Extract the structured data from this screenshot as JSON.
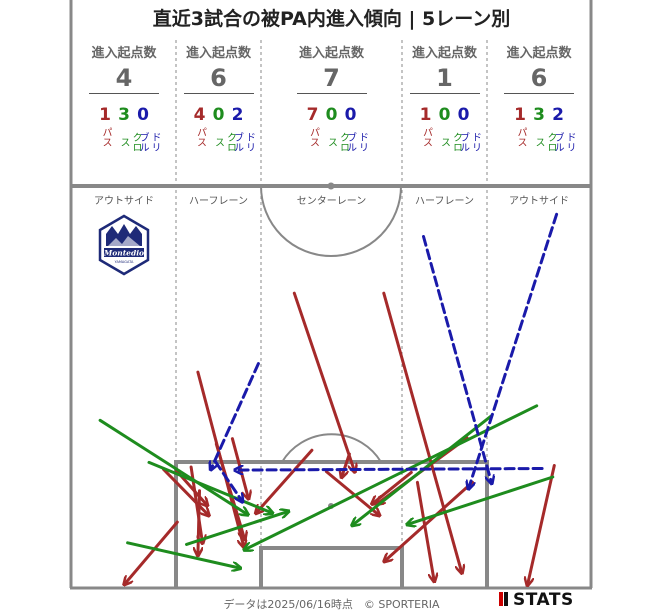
{
  "title": "直近3試合の被PA内進入傾向 | 5レーン別",
  "header_label": "進入起点数",
  "colors": {
    "pass": "#a52a2a",
    "cross": "#1e8c1e",
    "dribble": "#1a1aaa",
    "line": "#888888"
  },
  "lanes": [
    {
      "name": "アウトサイド",
      "total": "4",
      "pass": "1",
      "cross": "3",
      "dribble": "0"
    },
    {
      "name": "ハーフレーン",
      "total": "6",
      "pass": "4",
      "cross": "0",
      "dribble": "2"
    },
    {
      "name": "センターレーン",
      "total": "7",
      "pass": "7",
      "cross": "0",
      "dribble": "0"
    },
    {
      "name": "ハーフレーン",
      "total": "1",
      "pass": "1",
      "cross": "0",
      "dribble": "0"
    },
    {
      "name": "アウトサイド",
      "total": "6",
      "pass": "1",
      "cross": "3",
      "dribble": "2"
    }
  ],
  "type_labels": {
    "pass": "パス",
    "cross": "クロス",
    "dribble": "ドリブル"
  },
  "footer": "データは2025/06/16時点　© SPORTERIA",
  "stats_logo": "STATS",
  "team_logo_text": "Montedio",
  "team_logo_sub": "YAMAGATA",
  "team_logo_icon": "montedio-crest-icon",
  "chart_data": {
    "type": "scatter",
    "description_units": "pitch coordinates: x = width across pitch (0 left touchline, 68 right touchline), y = meters from goal line",
    "xlim": [
      0,
      68
    ],
    "ylim": [
      0,
      52.5
    ],
    "series": [
      {
        "name": "パス",
        "style": "solid",
        "color": "#a52a2a",
        "arrows": [
          [
            40.9,
            38.5,
            51.1,
            2.0
          ],
          [
            51.8,
            19.6,
            40.0,
            11.0
          ],
          [
            52.5,
            13.8,
            41.0,
            3.5
          ],
          [
            45.3,
            13.8,
            47.5,
            0.9
          ],
          [
            44.5,
            15.1,
            39.4,
            11.0
          ],
          [
            16.6,
            28.2,
            22.6,
            5.4
          ],
          [
            19.0,
            18.8,
            22.7,
            6.4
          ],
          [
            13.8,
            15.3,
            17.8,
            10.8
          ],
          [
            12.1,
            15.5,
            18.0,
            9.5
          ],
          [
            15.7,
            15.8,
            17.2,
            5.9
          ],
          [
            16.8,
            12.7,
            16.6,
            4.3
          ],
          [
            21.1,
            19.5,
            23.2,
            11.7
          ],
          [
            13.9,
            8.6,
            7.0,
            0.5
          ],
          [
            31.5,
            18.0,
            24.2,
            9.8
          ],
          [
            33.4,
            15.2,
            40.3,
            9.5
          ],
          [
            63.2,
            16.0,
            59.7,
            0.4
          ],
          [
            29.2,
            38.5,
            37.1,
            15.2
          ],
          [
            36.4,
            17.5,
            35.4,
            14.5
          ]
        ]
      },
      {
        "name": "クロス",
        "style": "solid",
        "color": "#1e8c1e",
        "arrows": [
          [
            3.8,
            21.9,
            23.1,
            9.6
          ],
          [
            10.2,
            16.4,
            26.3,
            9.8
          ],
          [
            7.4,
            5.9,
            22.1,
            2.6
          ],
          [
            15.1,
            5.7,
            28.4,
            10.0
          ],
          [
            55.0,
            22.5,
            36.8,
            8.2
          ],
          [
            63.0,
            14.5,
            44.0,
            8.3
          ],
          [
            60.9,
            23.8,
            22.7,
            5.0
          ]
        ]
      },
      {
        "name": "ドリブル",
        "style": "dashed",
        "color": "#1a1aaa",
        "arrows": [
          [
            46.1,
            45.9,
            55.0,
            13.7
          ],
          [
            63.5,
            48.8,
            52.0,
            13.0
          ],
          [
            61.6,
            15.6,
            21.5,
            15.4
          ],
          [
            24.5,
            29.3,
            18.3,
            15.5
          ],
          [
            18.9,
            16.5,
            22.4,
            11.3
          ]
        ]
      }
    ]
  }
}
